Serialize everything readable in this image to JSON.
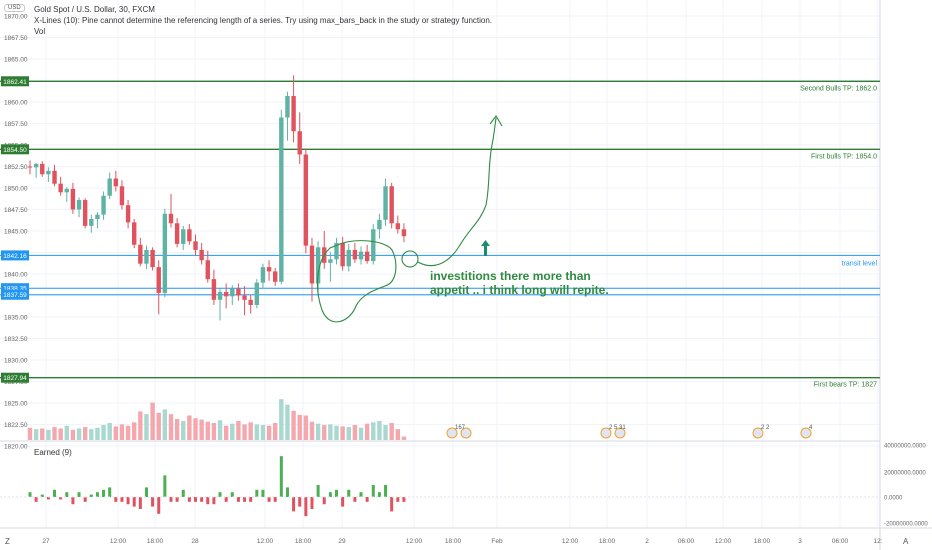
{
  "header": {
    "symbol_line": "Gold Spot / U.S. Dollar, 30, FXCM",
    "warning": "X-Lines (10): Pine cannot determine the referencing length of a series. Try using max_bars_back in the study or strategy function.",
    "volume_label": "Vol",
    "currency": "USD"
  },
  "toolbar": {
    "z_label": "Z",
    "a_label": "A"
  },
  "colors": {
    "up": "#5fb3a5",
    "down": "#e0525d",
    "level_green": "#2e7d32",
    "level_blue": "#2196f3",
    "annotation": "#2e8b3f"
  },
  "chart_data": {
    "type": "candlestick",
    "symbol": "Gold Spot / U.S. Dollar",
    "interval": "30",
    "source": "FXCM",
    "ylim": [
      1817.5,
      1877.5
    ],
    "y_ticks": [
      1875.0,
      1872.5,
      1870.0,
      1867.5,
      1865.0,
      1862.5,
      1860.0,
      1857.5,
      1855.0,
      1852.5,
      1850.0,
      1847.5,
      1845.0,
      1842.5,
      1840.0,
      1837.5,
      1835.0,
      1832.5,
      1830.0,
      1827.5,
      1825.0,
      1822.5,
      1820.0
    ],
    "x_ticks": [
      "27",
      "12:00",
      "18:00",
      "28",
      "12:00",
      "18:00",
      "29",
      "12:00",
      "18:00",
      "Feb",
      "12:00",
      "18:00",
      "2",
      "06:00",
      "12:00",
      "18:00",
      "3",
      "06:00",
      "12:"
    ],
    "candles": [
      [
        1852.5,
        1853.2,
        1851.6,
        1852.4
      ],
      [
        1852.4,
        1852.9,
        1851.2,
        1852.8
      ],
      [
        1852.8,
        1853.1,
        1851.3,
        1851.6
      ],
      [
        1851.6,
        1852.4,
        1850.7,
        1852.0
      ],
      [
        1852.0,
        1852.7,
        1850.2,
        1850.5
      ],
      [
        1850.5,
        1851.3,
        1849.1,
        1849.5
      ],
      [
        1849.5,
        1850.1,
        1848.4,
        1849.9
      ],
      [
        1849.9,
        1850.6,
        1847.0,
        1847.5
      ],
      [
        1847.5,
        1848.9,
        1846.6,
        1848.6
      ],
      [
        1848.6,
        1848.8,
        1845.3,
        1845.6
      ],
      [
        1845.6,
        1846.9,
        1844.8,
        1846.4
      ],
      [
        1846.4,
        1847.2,
        1845.3,
        1846.9
      ],
      [
        1846.9,
        1849.6,
        1846.3,
        1849.1
      ],
      [
        1849.1,
        1851.8,
        1848.7,
        1851.1
      ],
      [
        1851.1,
        1852.0,
        1849.6,
        1850.2
      ],
      [
        1850.2,
        1850.9,
        1847.5,
        1848.0
      ],
      [
        1848.0,
        1848.6,
        1845.3,
        1846.0
      ],
      [
        1846.0,
        1846.4,
        1843.0,
        1843.4
      ],
      [
        1843.4,
        1844.2,
        1840.9,
        1841.2
      ],
      [
        1841.2,
        1843.3,
        1840.6,
        1842.8
      ],
      [
        1842.8,
        1843.1,
        1840.4,
        1840.8
      ],
      [
        1840.8,
        1841.6,
        1835.3,
        1837.8
      ],
      [
        1837.8,
        1847.6,
        1837.3,
        1847.0
      ],
      [
        1847.0,
        1849.3,
        1845.4,
        1845.9
      ],
      [
        1845.9,
        1846.5,
        1843.1,
        1843.5
      ],
      [
        1843.5,
        1845.6,
        1842.8,
        1845.2
      ],
      [
        1845.2,
        1845.8,
        1843.4,
        1843.8
      ],
      [
        1843.8,
        1844.6,
        1842.2,
        1842.8
      ],
      [
        1842.8,
        1843.6,
        1841.1,
        1841.6
      ],
      [
        1841.6,
        1842.7,
        1839.0,
        1839.4
      ],
      [
        1839.4,
        1840.5,
        1836.4,
        1837.0
      ],
      [
        1837.0,
        1838.3,
        1834.6,
        1837.9
      ],
      [
        1837.9,
        1838.9,
        1836.0,
        1837.4
      ],
      [
        1837.4,
        1838.7,
        1836.4,
        1838.3
      ],
      [
        1838.3,
        1838.9,
        1836.9,
        1837.5
      ],
      [
        1837.5,
        1838.6,
        1835.2,
        1837.0
      ],
      [
        1837.0,
        1837.6,
        1835.4,
        1836.4
      ],
      [
        1836.4,
        1839.4,
        1836.0,
        1839.0
      ],
      [
        1839.0,
        1841.2,
        1838.4,
        1840.8
      ],
      [
        1840.8,
        1841.6,
        1839.2,
        1840.3
      ],
      [
        1840.3,
        1840.7,
        1838.6,
        1839.1
      ],
      [
        1839.1,
        1859.1,
        1838.8,
        1858.2
      ],
      [
        1858.2,
        1861.2,
        1855.5,
        1860.7
      ],
      [
        1860.7,
        1863.1,
        1855.3,
        1856.6
      ],
      [
        1856.6,
        1858.8,
        1852.8,
        1853.9
      ],
      [
        1853.9,
        1854.6,
        1842.4,
        1843.3
      ],
      [
        1843.3,
        1844.2,
        1836.8,
        1838.9
      ],
      [
        1838.9,
        1843.8,
        1837.7,
        1843.1
      ],
      [
        1843.1,
        1845.0,
        1840.6,
        1841.3
      ],
      [
        1841.3,
        1842.6,
        1839.1,
        1841.7
      ],
      [
        1841.7,
        1844.2,
        1841.1,
        1843.6
      ],
      [
        1843.6,
        1844.3,
        1840.4,
        1840.9
      ],
      [
        1840.9,
        1843.5,
        1840.3,
        1842.8
      ],
      [
        1842.8,
        1843.6,
        1841.3,
        1841.7
      ],
      [
        1841.7,
        1843.2,
        1841.1,
        1842.6
      ],
      [
        1842.6,
        1843.4,
        1841.2,
        1841.5
      ],
      [
        1841.5,
        1845.8,
        1841.1,
        1845.2
      ],
      [
        1845.2,
        1847.0,
        1844.1,
        1846.3
      ],
      [
        1846.3,
        1851.1,
        1845.6,
        1850.2
      ],
      [
        1850.2,
        1850.6,
        1845.3,
        1845.9
      ],
      [
        1845.9,
        1846.8,
        1844.7,
        1845.2
      ],
      [
        1845.2,
        1845.9,
        1843.7,
        1844.4
      ]
    ],
    "volume": [
      18,
      16,
      17,
      15,
      19,
      17,
      21,
      15,
      17,
      19,
      16,
      18,
      22,
      25,
      20,
      23,
      21,
      26,
      42,
      38,
      55,
      40,
      45,
      38,
      31,
      28,
      36,
      32,
      30,
      27,
      25,
      29,
      21,
      24,
      28,
      23,
      26,
      23,
      22,
      21,
      25,
      60,
      52,
      43,
      37,
      36,
      27,
      24,
      22,
      23,
      21,
      20,
      19,
      22,
      18,
      24,
      26,
      28,
      22,
      25,
      16,
      5
    ],
    "earned": [
      2,
      -2,
      1,
      -1,
      3,
      -1,
      2,
      -3,
      2,
      -2,
      1,
      2,
      3,
      4,
      -2,
      -2,
      -3,
      -4,
      -5,
      4,
      -4,
      -7,
      9,
      -2,
      -2,
      3,
      -2,
      -2,
      -2,
      -3,
      -3,
      2,
      -2,
      2,
      -2,
      -2,
      -2,
      3,
      3,
      -2,
      -2,
      17,
      4,
      -6,
      -4,
      -8,
      -5,
      5,
      -3,
      2,
      3,
      -4,
      3,
      -2,
      2,
      -2,
      5,
      2,
      5,
      -6,
      -2,
      -2
    ],
    "earned_label": "Earned (9)",
    "earned_ticks": [
      "40000000.0000",
      "20000000.0000",
      "0.0000",
      "-20000000.0000"
    ],
    "levels": [
      {
        "price": 1862.41,
        "badge": "1862.41",
        "label": "Second Bulls TP: 1862.0",
        "color": "green"
      },
      {
        "price": 1854.5,
        "badge": "1854.50",
        "label": "First bulls TP: 1854.0",
        "color": "green"
      },
      {
        "price": 1842.16,
        "badge": "1842.16",
        "label": "transit level",
        "color": "blue"
      },
      {
        "price": 1838.35,
        "badge": "1838.35",
        "label": "",
        "color": "blue"
      },
      {
        "price": 1837.59,
        "badge": "1837.59",
        "label": "",
        "color": "blue"
      },
      {
        "price": 1827.94,
        "badge": "1827.94",
        "label": "First bears TP: 1827",
        "color": "green"
      }
    ],
    "annotation": {
      "line1": "investitions there more than",
      "line2": "appetit .. i think long will repite."
    },
    "event_badges": [
      "167",
      "2 5 31",
      "2 2",
      "4"
    ]
  }
}
